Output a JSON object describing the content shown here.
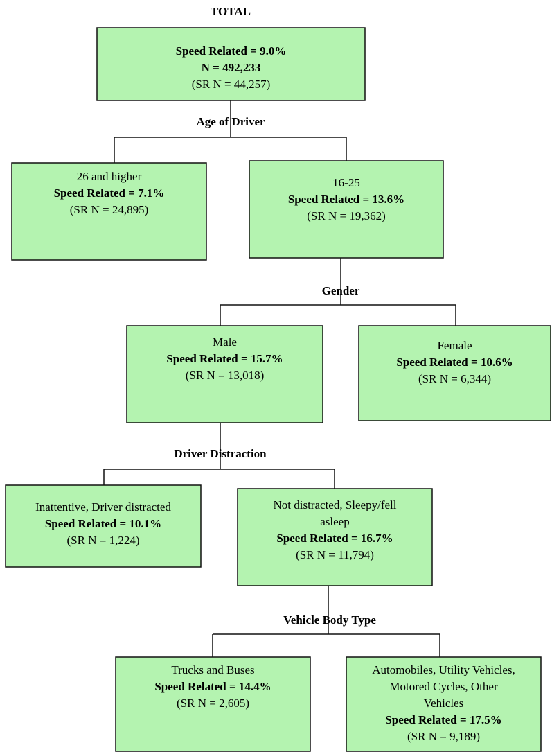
{
  "title": "TOTAL",
  "nodes": [
    {
      "speed_related": "Speed Related = 9.0%",
      "n": "N = 492,233",
      "sr_n": "(SR N = 44,257)"
    },
    {
      "label": [
        "26 and higher"
      ],
      "speed_related": "Speed Related = 7.1%",
      "sr_n": "(SR N = 24,895)"
    },
    {
      "label": [
        "16-25"
      ],
      "speed_related": "Speed Related = 13.6%",
      "sr_n": "(SR N = 19,362)"
    },
    {
      "label": [
        "Male"
      ],
      "speed_related": "Speed Related = 15.7%",
      "sr_n": "(SR N = 13,018)"
    },
    {
      "label": [
        "Female"
      ],
      "speed_related": "Speed Related = 10.6%",
      "sr_n": "(SR N = 6,344)"
    },
    {
      "label": [
        "Inattentive, Driver distracted"
      ],
      "speed_related": "Speed Related = 10.1%",
      "sr_n": "(SR N = 1,224)"
    },
    {
      "label": [
        "Not distracted, Sleepy/fell",
        "asleep"
      ],
      "speed_related": "Speed Related = 16.7%",
      "sr_n": "(SR N = 11,794)"
    },
    {
      "label": [
        "Trucks and Buses"
      ],
      "speed_related": "Speed Related = 14.4%",
      "sr_n": "(SR N = 2,605)"
    },
    {
      "label": [
        "Automobiles, Utility Vehicles,",
        "Motored Cycles, Other",
        "Vehicles"
      ],
      "speed_related": "Speed Related = 17.5%",
      "sr_n": "(SR N = 9,189)"
    }
  ],
  "splits": [
    "Age of Driver",
    "Gender",
    "Driver Distraction",
    "Vehicle Body Type"
  ]
}
